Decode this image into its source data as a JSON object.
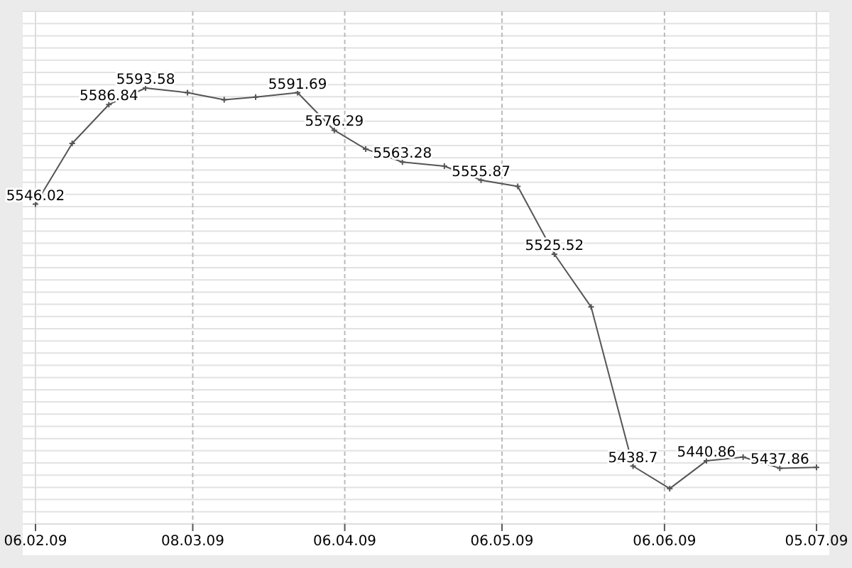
{
  "chart_data": {
    "type": "line",
    "x": [
      "2009-02-06",
      "2009-02-13",
      "2009-02-20",
      "2009-02-27",
      "2009-03-07",
      "2009-03-14",
      "2009-03-20",
      "2009-03-28",
      "2009-04-04",
      "2009-04-10",
      "2009-04-17",
      "2009-04-25",
      "2009-05-02",
      "2009-05-09",
      "2009-05-16",
      "2009-05-23",
      "2009-05-31",
      "2009-06-07",
      "2009-06-14",
      "2009-06-21",
      "2009-06-28",
      "2009-07-05"
    ],
    "series": [
      {
        "color": "#555555",
        "values": [
          5546.02,
          5570.9,
          5586.84,
          5593.58,
          5591.7,
          5588.8,
          5589.9,
          5591.69,
          5576.29,
          5568.6,
          5563.28,
          5561.6,
          5555.87,
          5553.3,
          5525.52,
          5503.9,
          5438.7,
          5429.5,
          5440.86,
          5442.4,
          5437.86,
          5438.2
        ],
        "value_labels": [
          "5546.02",
          null,
          "5586.84",
          "5593.58",
          null,
          null,
          null,
          "5591.69",
          "5576.29",
          null,
          "5563.28",
          null,
          "5555.87",
          null,
          "5525.52",
          null,
          "5438.7",
          null,
          "5440.86",
          null,
          "5437.86",
          null
        ]
      }
    ],
    "xlim": [
      "2009-02-06",
      "2009-07-05"
    ],
    "xticks": [
      {
        "value": "2009-02-06",
        "label": "06.02.09"
      },
      {
        "value": "2009-03-08",
        "label": "08.03.09"
      },
      {
        "value": "2009-04-06",
        "label": "06.04.09"
      },
      {
        "value": "2009-05-06",
        "label": "06.05.09"
      },
      {
        "value": "2009-06-06",
        "label": "06.06.09"
      },
      {
        "value": "2009-07-05",
        "label": "05.07.09"
      }
    ],
    "ylim": [
      5415,
      5625
    ],
    "yticks": [
      {
        "value": 5415,
        "label": null
      },
      {
        "value": 5420,
        "label": null
      },
      {
        "value": 5425,
        "label": null
      },
      {
        "value": 5430,
        "label": null
      },
      {
        "value": 5435,
        "label": null
      },
      {
        "value": 5440,
        "label": null
      },
      {
        "value": 5445,
        "label": null
      },
      {
        "value": 5450,
        "label": null
      },
      {
        "value": 5455,
        "label": null
      },
      {
        "value": 5460,
        "label": null
      },
      {
        "value": 5465,
        "label": null
      },
      {
        "value": 5470,
        "label": null
      },
      {
        "value": 5475,
        "label": null
      },
      {
        "value": 5480,
        "label": null
      },
      {
        "value": 5485,
        "label": null
      },
      {
        "value": 5490,
        "label": null
      },
      {
        "value": 5495,
        "label": null
      },
      {
        "value": 5500,
        "label": null
      },
      {
        "value": 5505,
        "label": null
      },
      {
        "value": 5510,
        "label": null
      },
      {
        "value": 5515,
        "label": null
      },
      {
        "value": 5520,
        "label": null
      },
      {
        "value": 5525,
        "label": null
      },
      {
        "value": 5530,
        "label": null
      },
      {
        "value": 5535,
        "label": null
      },
      {
        "value": 5540,
        "label": null
      },
      {
        "value": 5545,
        "label": null
      },
      {
        "value": 5550,
        "label": null
      },
      {
        "value": 5555,
        "label": null
      },
      {
        "value": 5560,
        "label": null
      },
      {
        "value": 5565,
        "label": null
      },
      {
        "value": 5570,
        "label": null
      },
      {
        "value": 5575,
        "label": null
      },
      {
        "value": 5580,
        "label": null
      },
      {
        "value": 5585,
        "label": null
      },
      {
        "value": 5590,
        "label": null
      },
      {
        "value": 5595,
        "label": null
      },
      {
        "value": 5600,
        "label": null
      },
      {
        "value": 5605,
        "label": null
      },
      {
        "value": 5610,
        "label": null
      },
      {
        "value": 5615,
        "label": null
      },
      {
        "value": 5620,
        "label": null
      },
      {
        "value": 5625,
        "label": null
      }
    ],
    "tick_labels": "x",
    "grid": true,
    "marker": "cross",
    "line_style": "solid"
  }
}
